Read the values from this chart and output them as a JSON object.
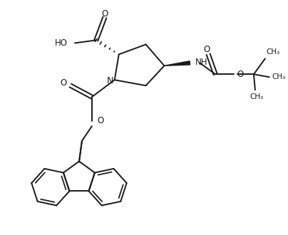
{
  "bg_color": "#ffffff",
  "line_color": "#1a1a1a",
  "line_width": 1.4,
  "fig_width": 4.04,
  "fig_height": 3.3,
  "dpi": 100,
  "xlim": [
    0,
    10
  ],
  "ylim": [
    0,
    8.25
  ]
}
